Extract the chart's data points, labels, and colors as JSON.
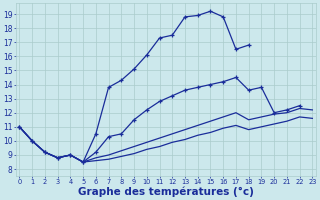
{
  "bg_color": "#cce8ec",
  "grid_color": "#aacccc",
  "line_color": "#1a2d9a",
  "xlabel": "Graphe des températures (°c)",
  "xlabel_fontsize": 7.5,
  "ytick_vals": [
    8,
    9,
    10,
    11,
    12,
    13,
    14,
    15,
    16,
    17,
    18,
    19
  ],
  "xtick_vals": [
    0,
    1,
    2,
    3,
    4,
    5,
    6,
    7,
    8,
    9,
    10,
    11,
    12,
    13,
    14,
    15,
    16,
    17,
    18,
    19,
    20,
    21,
    22,
    23
  ],
  "ylim": [
    7.5,
    19.8
  ],
  "xlim": [
    -0.3,
    23.3
  ],
  "line1_x": [
    0,
    1,
    2,
    3,
    4,
    5,
    6,
    7,
    8,
    9,
    10,
    11,
    12,
    13,
    14,
    15,
    16,
    17,
    18
  ],
  "line1_y": [
    11.0,
    10.0,
    9.2,
    8.8,
    9.0,
    8.5,
    10.5,
    13.8,
    14.3,
    15.1,
    16.1,
    17.3,
    17.5,
    18.8,
    18.9,
    19.2,
    18.8,
    16.5,
    16.8
  ],
  "line2_x": [
    0,
    1,
    2,
    3,
    4,
    5,
    6,
    7,
    8,
    9,
    10,
    11,
    12,
    13,
    14,
    15,
    16,
    17,
    18,
    19,
    20,
    21,
    22
  ],
  "line2_y": [
    11.0,
    10.0,
    9.2,
    8.8,
    9.0,
    8.5,
    9.2,
    10.3,
    10.5,
    11.5,
    12.2,
    12.8,
    13.2,
    13.6,
    13.8,
    14.0,
    14.2,
    14.5,
    13.6,
    13.8,
    12.0,
    12.2,
    12.5
  ],
  "line3_x": [
    0,
    1,
    2,
    3,
    4,
    5,
    6,
    7,
    8,
    9,
    10,
    11,
    12,
    13,
    14,
    15,
    16,
    17,
    18,
    19,
    20,
    21,
    22,
    23
  ],
  "line3_y": [
    11.0,
    10.0,
    9.2,
    8.8,
    9.0,
    8.5,
    8.8,
    9.0,
    9.3,
    9.6,
    9.9,
    10.2,
    10.5,
    10.8,
    11.1,
    11.4,
    11.7,
    12.0,
    11.5,
    11.7,
    11.9,
    12.0,
    12.3,
    12.2
  ],
  "line4_x": [
    0,
    1,
    2,
    3,
    4,
    5,
    6,
    7,
    8,
    9,
    10,
    11,
    12,
    13,
    14,
    15,
    16,
    17,
    18,
    19,
    20,
    21,
    22,
    23
  ],
  "line4_y": [
    11.0,
    10.0,
    9.2,
    8.8,
    9.0,
    8.5,
    8.6,
    8.7,
    8.9,
    9.1,
    9.4,
    9.6,
    9.9,
    10.1,
    10.4,
    10.6,
    10.9,
    11.1,
    10.8,
    11.0,
    11.2,
    11.4,
    11.7,
    11.6
  ]
}
